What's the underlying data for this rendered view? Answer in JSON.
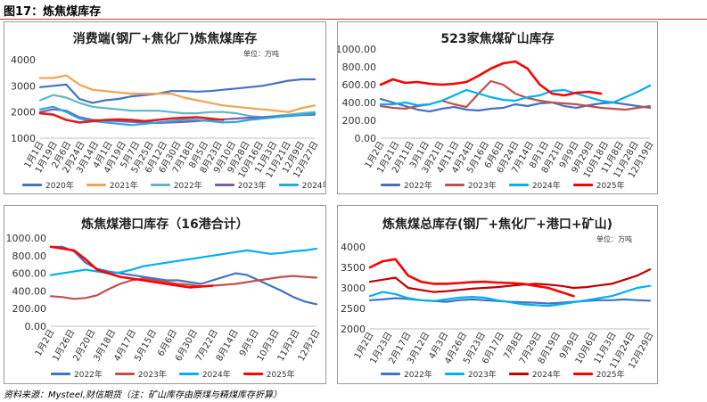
{
  "figure": {
    "title": "图17：炼焦煤库存",
    "source": "资料来源：Mysteel,财信期货（注：矿山库存由原煤与精煤库存折算）"
  },
  "colors": {
    "header_line": "#c0392b"
  },
  "chart_data": [
    {
      "type": "line",
      "title": "消费端(钢厂+焦化厂)炼焦煤库存",
      "unit": "单位：万吨",
      "xlabel": "",
      "ylabel": "",
      "ylim": [
        1000,
        4000
      ],
      "yticks": [
        1000,
        2000,
        3000,
        4000
      ],
      "ytick_labels": [
        "1000",
        "2000",
        "3000",
        "4000"
      ],
      "x_labels": [
        "1月1日",
        "1月19日",
        "2月6日",
        "2月24日",
        "3月14日",
        "4月1日",
        "4月19日",
        "5月7日",
        "5月25日",
        "6月12日",
        "6月30日",
        "7月18日",
        "8月5日",
        "8月23日",
        "9月10日",
        "9月28日",
        "10月16日",
        "11月3日",
        "11月21日",
        "12月9日",
        "12月27日"
      ],
      "grid": false,
      "legend_position": "bottom",
      "series": [
        {
          "name": "2020年",
          "color": "#4472c4",
          "values": [
            2950,
            3000,
            3050,
            2500,
            2350,
            2450,
            2500,
            2600,
            2650,
            2700,
            2800,
            2800,
            2780,
            2800,
            2850,
            2900,
            2950,
            3000,
            3100,
            3200,
            3250,
            3250
          ]
        },
        {
          "name": "2021年",
          "color": "#f4a251",
          "values": [
            3300,
            3300,
            3400,
            3050,
            2850,
            2800,
            2750,
            2700,
            2700,
            2700,
            2700,
            2550,
            2450,
            2350,
            2250,
            2200,
            2150,
            2100,
            2050,
            2000,
            2150,
            2250
          ]
        },
        {
          "name": "2022年",
          "color": "#5fb6c6",
          "values": [
            2450,
            2650,
            2550,
            2350,
            2200,
            2150,
            2100,
            2050,
            2050,
            2050,
            2000,
            1950,
            1950,
            2000,
            2000,
            1950,
            1850,
            1800,
            1850,
            1900,
            1950,
            2000
          ]
        },
        {
          "name": "2023年",
          "color": "#7b5ea7",
          "values": [
            2000,
            2100,
            2050,
            1800,
            1700,
            1680,
            1650,
            1620,
            1600,
            1580,
            1600,
            1620,
            1650,
            1700,
            1720,
            1750,
            1780,
            1800,
            1820,
            1850,
            1880,
            1900
          ]
        },
        {
          "name": "2024年",
          "color": "#29a8e0",
          "values": [
            2100,
            2200,
            2000,
            1750,
            1650,
            1600,
            1550,
            1500,
            1550,
            1600,
            1650,
            1700,
            1700,
            1650,
            1600,
            1620,
            1700,
            1750,
            1800,
            1850,
            1900,
            1950
          ]
        },
        {
          "name": "2025年",
          "color": "#e31a1c",
          "values": [
            1950,
            1900,
            1700,
            1600,
            1650,
            1700,
            1720,
            1700,
            1650,
            1700,
            1750,
            1780,
            1800,
            1750,
            1700,
            null,
            null,
            null,
            null,
            null,
            null,
            null
          ]
        }
      ]
    },
    {
      "type": "line",
      "title": "523家焦煤矿山库存",
      "unit": "",
      "xlabel": "",
      "ylabel": "",
      "ylim": [
        0,
        1000
      ],
      "yticks": [
        0,
        200,
        400,
        600,
        800,
        1000
      ],
      "ytick_labels": [
        "0.00",
        "200.00",
        "400.00",
        "600.00",
        "800.00",
        "1000.00"
      ],
      "x_labels": [
        "1月2日",
        "1月21日",
        "2月11日",
        "3月1日",
        "3月21日",
        "4月11日",
        "4月24日",
        "5月16日",
        "6月6日",
        "6月24日",
        "7月14日",
        "8月1日",
        "8月21日",
        "9月9日",
        "9月29日",
        "10月18日",
        "11月8日",
        "11月28日",
        "12月19日"
      ],
      "grid": false,
      "legend_position": "bottom",
      "series": [
        {
          "name": "2022年",
          "color": "#4472c4",
          "values": [
            440,
            400,
            360,
            320,
            300,
            330,
            350,
            320,
            310,
            330,
            340,
            380,
            360,
            390,
            400,
            360,
            340,
            370,
            390,
            400,
            380,
            360,
            340
          ]
        },
        {
          "name": "2023年",
          "color": "#c0504d",
          "values": [
            360,
            340,
            330,
            360,
            380,
            420,
            380,
            350,
            500,
            640,
            600,
            500,
            450,
            420,
            400,
            390,
            380,
            360,
            340,
            330,
            320,
            340,
            360
          ]
        },
        {
          "name": "2024年",
          "color": "#00b0f0",
          "values": [
            380,
            380,
            400,
            370,
            380,
            420,
            480,
            540,
            500,
            460,
            430,
            420,
            460,
            480,
            530,
            540,
            500,
            460,
            420,
            400,
            460,
            520,
            590
          ]
        },
        {
          "name": "2025年",
          "color": "#ff0000",
          "values": [
            600,
            660,
            620,
            630,
            610,
            600,
            610,
            630,
            700,
            780,
            840,
            860,
            780,
            600,
            500,
            480,
            510,
            520,
            500,
            null,
            null,
            null,
            null
          ]
        }
      ]
    },
    {
      "type": "line",
      "title": "炼焦煤港口库存（16港合计）",
      "unit": "",
      "xlabel": "",
      "ylabel": "",
      "ylim": [
        0,
        1000
      ],
      "yticks": [
        0,
        200,
        400,
        600,
        800,
        1000
      ],
      "ytick_labels": [
        "0.00",
        "200.00",
        "400.00",
        "600.00",
        "800.00",
        "1000.00"
      ],
      "x_labels": [
        "1月2日",
        "1月26日",
        "2月20日",
        "3月18日",
        "4月17日",
        "5月15日",
        "6月6日",
        "6月30日",
        "7月22日",
        "8月14日",
        "9月5日",
        "10月3日",
        "11月2日",
        "12月2日"
      ],
      "grid": false,
      "legend_position": "bottom",
      "series": [
        {
          "name": "2022年",
          "color": "#4472c4",
          "values": [
            900,
            900,
            850,
            720,
            650,
            620,
            600,
            580,
            560,
            540,
            520,
            520,
            500,
            480,
            520,
            560,
            600,
            580,
            520,
            460,
            400,
            330,
            280,
            250
          ]
        },
        {
          "name": "2023年",
          "color": "#c0504d",
          "values": [
            340,
            330,
            310,
            320,
            350,
            420,
            480,
            520,
            540,
            520,
            500,
            480,
            470,
            450,
            460,
            470,
            480,
            500,
            520,
            540,
            560,
            570,
            560,
            550
          ]
        },
        {
          "name": "2024年",
          "color": "#00b0f0",
          "values": [
            580,
            600,
            620,
            640,
            620,
            600,
            610,
            640,
            680,
            700,
            720,
            740,
            760,
            780,
            800,
            820,
            840,
            860,
            840,
            820,
            830,
            850,
            860,
            880
          ]
        },
        {
          "name": "2025年",
          "color": "#ff0000",
          "values": [
            900,
            880,
            860,
            760,
            640,
            600,
            560,
            540,
            520,
            500,
            480,
            460,
            440,
            450,
            460,
            null,
            null,
            null,
            null,
            null,
            null,
            null,
            null,
            null
          ]
        }
      ]
    },
    {
      "type": "line",
      "title": "炼焦煤总库存(钢厂+焦化厂+港口+矿山)",
      "unit": "单位：万吨",
      "xlabel": "",
      "ylabel": "",
      "ylim": [
        2000,
        4000
      ],
      "yticks": [
        2000,
        2500,
        3000,
        3500,
        4000
      ],
      "ytick_labels": [
        "2000",
        "2500",
        "3000",
        "3500",
        "4000"
      ],
      "x_labels": [
        "1月2日",
        "1月23日",
        "2月17日",
        "3月12日",
        "4月3日",
        "4月26日",
        "5月23日",
        "6月17日",
        "7月8日",
        "7月29日",
        "8月19日",
        "9月9日",
        "10月6日",
        "11月3日",
        "11月24日",
        "12月29日"
      ],
      "grid": false,
      "legend_position": "bottom",
      "series": [
        {
          "name": "2022年",
          "color": "#4472c4",
          "values": [
            2700,
            2720,
            2750,
            2730,
            2700,
            2680,
            2660,
            2700,
            2720,
            2700,
            2680,
            2660,
            2650,
            2640,
            2620,
            2640,
            2660,
            2680,
            2700,
            2700,
            2720,
            2700,
            2690
          ]
        },
        {
          "name": "2023年",
          "color": "#00b0f0",
          "values": [
            2800,
            2900,
            2850,
            2750,
            2700,
            2680,
            2720,
            2760,
            2780,
            2760,
            2700,
            2650,
            2600,
            2580,
            2560,
            2600,
            2650,
            2700,
            2750,
            2800,
            2900,
            3000,
            3050
          ]
        },
        {
          "name": "2024年",
          "color": "#c00000",
          "values": [
            3150,
            3200,
            3250,
            3000,
            2950,
            2900,
            2920,
            2950,
            2980,
            3000,
            3020,
            3050,
            3080,
            3100,
            3080,
            3050,
            3000,
            3020,
            3060,
            3100,
            3200,
            3300,
            3450
          ]
        },
        {
          "name": "2025年",
          "color": "#ff0000",
          "values": [
            3500,
            3650,
            3700,
            3300,
            3150,
            3100,
            3100,
            3120,
            3140,
            3150,
            3130,
            3120,
            3100,
            3050,
            3000,
            2900,
            2800,
            null,
            null,
            null,
            null,
            null,
            null
          ]
        }
      ]
    }
  ]
}
